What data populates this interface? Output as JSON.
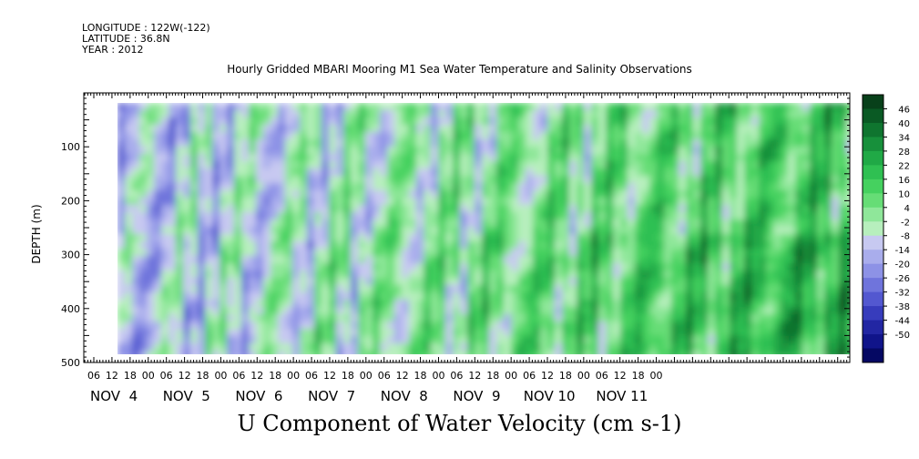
{
  "header": {
    "longitude": "LONGITUDE : 122W(-122)",
    "latitude": "LATITUDE : 36.8N",
    "year": "YEAR : 2012"
  },
  "chart_data": {
    "type": "heatmap",
    "title": "Hourly Gridded MBARI Mooring M1 Sea Water Temperature and Salinity Observations",
    "xlabel": "U Component of Water Velocity (cm s-1)",
    "ylabel": "DEPTH (m)",
    "x_ticks": [
      "06",
      "12",
      "18",
      "00",
      "06",
      "12",
      "18",
      "00",
      "06",
      "12",
      "18",
      "00",
      "06",
      "12",
      "18",
      "00",
      "06",
      "12",
      "18",
      "00",
      "06",
      "12",
      "18",
      "00",
      "06",
      "12",
      "18",
      "00",
      "06",
      "12",
      "18",
      "00"
    ],
    "x_dates": [
      "NOV  4",
      "NOV  5",
      "NOV  6",
      "NOV  7",
      "NOV  8",
      "NOV  9",
      "NOV 10",
      "NOV 11"
    ],
    "y_ticks": [
      100,
      200,
      300,
      400,
      500
    ],
    "ylim": [
      500,
      0
    ],
    "colorbar": {
      "levels": [
        46,
        40,
        34,
        28,
        22,
        16,
        10,
        4,
        -2,
        -8,
        -14,
        -20,
        -26,
        -32,
        -38,
        -44,
        -50
      ],
      "colors": [
        "#08401a",
        "#0a5a24",
        "#0f752f",
        "#17903b",
        "#20a946",
        "#2fc052",
        "#45d15f",
        "#66dd76",
        "#8fe79a",
        "#b7efbd",
        "#c7c9f1",
        "#a9adec",
        "#8d92e6",
        "#6f74dc",
        "#5358d0",
        "#373cbc",
        "#2226a3",
        "#10148a",
        "#050863"
      ]
    },
    "grid": false,
    "colorbar_position": "right"
  }
}
